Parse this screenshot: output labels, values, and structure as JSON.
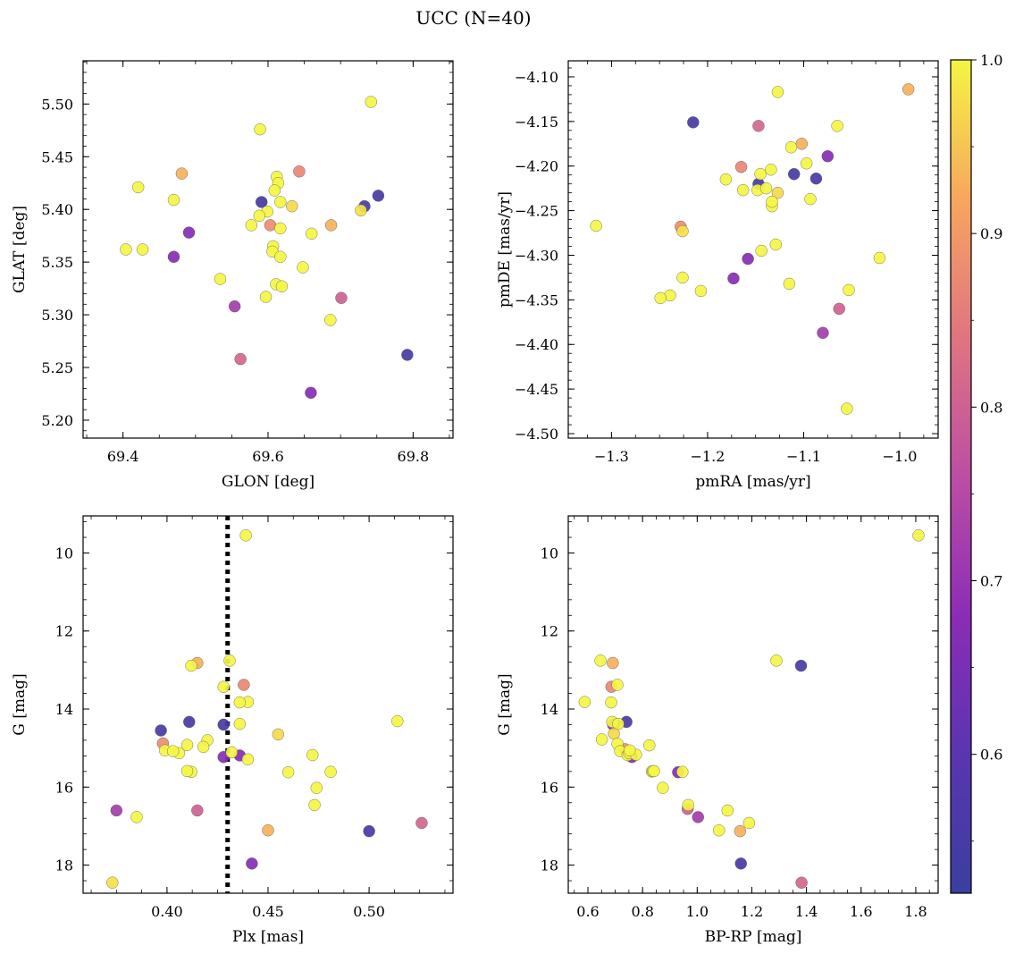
{
  "figure": {
    "title": "UCC (N=40)"
  },
  "colorbar": {
    "min": 0.52,
    "max": 1.0,
    "ticks": [
      0.6,
      0.7,
      0.8,
      0.9,
      1.0
    ],
    "tick_labels": [
      "0.6",
      "0.7",
      "0.8",
      "0.9",
      "1.0"
    ],
    "colormap": "plasma"
  },
  "chart_data": [
    {
      "type": "scatter",
      "xlabel": "GLON [deg]",
      "ylabel": "GLAT [deg]",
      "xlim": [
        69.345,
        69.855
      ],
      "ylim": [
        5.183,
        5.541
      ],
      "xticks": [
        69.4,
        69.6,
        69.8
      ],
      "xtick_labels": [
        "69.4",
        "69.6",
        "69.8"
      ],
      "yticks": [
        5.2,
        5.25,
        5.3,
        5.35,
        5.4,
        5.45,
        5.5
      ],
      "ytick_labels": [
        "5.20",
        "5.25",
        "5.30",
        "5.35",
        "5.40",
        "5.45",
        "5.50"
      ],
      "y_inverted": false,
      "x": [
        69.742,
        69.589,
        69.481,
        69.612,
        69.643,
        69.421,
        69.47,
        69.614,
        69.609,
        69.733,
        69.752,
        69.591,
        69.617,
        69.633,
        69.599,
        69.588,
        69.577,
        69.603,
        69.617,
        69.66,
        69.491,
        69.404,
        69.427,
        69.607,
        69.606,
        69.617,
        69.47,
        69.648,
        69.534,
        69.611,
        69.619,
        69.597,
        69.701,
        69.554,
        69.686,
        69.687,
        69.792,
        69.562,
        69.659,
        69.728
      ],
      "y": [
        5.502,
        5.476,
        5.434,
        5.431,
        5.436,
        5.421,
        5.409,
        5.425,
        5.418,
        5.403,
        5.413,
        5.407,
        5.407,
        5.403,
        5.398,
        5.394,
        5.385,
        5.385,
        5.382,
        5.377,
        5.378,
        5.362,
        5.362,
        5.365,
        5.36,
        5.355,
        5.355,
        5.345,
        5.334,
        5.329,
        5.327,
        5.317,
        5.316,
        5.308,
        5.295,
        5.385,
        5.262,
        5.258,
        5.226,
        5.399
      ]
    },
    {
      "type": "scatter",
      "xlabel": "pmRA [mas/yr]",
      "ylabel": "pmDE [mas/yr]",
      "xlim": [
        -1.345,
        -0.96
      ],
      "ylim": [
        -4.505,
        -4.082
      ],
      "xticks": [
        -1.3,
        -1.2,
        -1.1,
        -1.0
      ],
      "xtick_labels": [
        "−1.3",
        "−1.2",
        "−1.1",
        "−1.0"
      ],
      "yticks": [
        -4.1,
        -4.15,
        -4.2,
        -4.25,
        -4.3,
        -4.35,
        -4.4,
        -4.45,
        -4.5
      ],
      "ytick_labels": [
        "−4.10",
        "−4.15",
        "−4.20",
        "−4.25",
        "−4.30",
        "−4.35",
        "−4.40",
        "−4.45",
        "−4.50"
      ],
      "y_inverted": false,
      "x": [
        -1.127,
        -1.065,
        -1.102,
        -1.113,
        -1.165,
        -1.097,
        -1.145,
        -1.134,
        -1.181,
        -1.147,
        -1.11,
        -1.087,
        -1.148,
        -1.127,
        -1.139,
        -1.093,
        -1.133,
        -1.228,
        -1.316,
        -1.144,
        -1.158,
        -1.133,
        -1.129,
        -1.163,
        -1.021,
        -1.115,
        -1.173,
        -1.207,
        -1.226,
        -1.239,
        -1.249,
        -1.053,
        -1.063,
        -1.08,
        -1.055,
        -0.991,
        -1.215,
        -1.147,
        -1.075,
        -1.226
      ],
      "y": [
        -4.117,
        -4.155,
        -4.175,
        -4.179,
        -4.201,
        -4.197,
        -4.209,
        -4.204,
        -4.215,
        -4.22,
        -4.209,
        -4.214,
        -4.227,
        -4.23,
        -4.225,
        -4.237,
        -4.245,
        -4.268,
        -4.267,
        -4.295,
        -4.304,
        -4.24,
        -4.288,
        -4.227,
        -4.303,
        -4.332,
        -4.326,
        -4.34,
        -4.325,
        -4.345,
        -4.348,
        -4.339,
        -4.36,
        -4.387,
        -4.472,
        -4.114,
        -4.151,
        -4.155,
        -4.189,
        -4.273
      ]
    },
    {
      "type": "scatter",
      "xlabel": "Plx [mas]",
      "ylabel": "G [mag]",
      "xlim": [
        0.3585,
        0.5415
      ],
      "ylim": [
        9.05,
        18.72
      ],
      "xticks": [
        0.4,
        0.45,
        0.5
      ],
      "xtick_labels": [
        "0.40",
        "0.45",
        "0.50"
      ],
      "yticks": [
        10,
        12,
        14,
        16,
        18
      ],
      "ytick_labels": [
        "10",
        "12",
        "14",
        "16",
        "18"
      ],
      "y_inverted": true,
      "vline": {
        "x": 0.43,
        "style": "dotted",
        "color": "#000000"
      },
      "x": [
        0.439,
        0.431,
        0.415,
        0.412,
        0.438,
        0.428,
        0.44,
        0.436,
        0.42,
        0.397,
        0.411,
        0.428,
        0.436,
        0.455,
        0.41,
        0.406,
        0.418,
        0.398,
        0.399,
        0.403,
        0.436,
        0.472,
        0.432,
        0.412,
        0.41,
        0.46,
        0.428,
        0.44,
        0.474,
        0.481,
        0.514,
        0.473,
        0.415,
        0.375,
        0.385,
        0.45,
        0.5,
        0.526,
        0.442,
        0.373
      ],
      "y": [
        9.55,
        12.76,
        12.82,
        12.89,
        13.38,
        13.43,
        13.82,
        13.83,
        14.8,
        14.55,
        14.33,
        14.4,
        14.38,
        14.65,
        14.92,
        15.13,
        14.97,
        14.88,
        15.06,
        15.08,
        15.19,
        15.18,
        15.11,
        15.61,
        15.59,
        15.62,
        15.23,
        15.29,
        16.02,
        15.61,
        14.31,
        16.46,
        16.6,
        16.6,
        16.77,
        17.11,
        17.13,
        16.92,
        17.96,
        18.45
      ]
    },
    {
      "type": "scatter",
      "xlabel": "BP-RP [mag]",
      "ylabel": "G [mag]",
      "xlim": [
        0.528,
        1.882
      ],
      "ylim": [
        9.05,
        18.72
      ],
      "xticks": [
        0.6,
        0.8,
        1.0,
        1.2,
        1.4,
        1.6,
        1.8
      ],
      "xtick_labels": [
        "0.6",
        "0.8",
        "1.0",
        "1.2",
        "1.4",
        "1.6",
        "1.8"
      ],
      "yticks": [
        10,
        12,
        14,
        16,
        18
      ],
      "ytick_labels": [
        "10",
        "12",
        "14",
        "16",
        "18"
      ],
      "y_inverted": true,
      "x": [
        1.81,
        0.646,
        0.691,
        0.708,
        0.686,
        1.29,
        0.685,
        0.588,
        0.689,
        1.38,
        0.741,
        0.699,
        0.711,
        0.695,
        0.708,
        0.651,
        0.718,
        0.736,
        0.745,
        0.751,
        0.761,
        0.776,
        0.753,
        0.825,
        0.838,
        0.842,
        0.93,
        0.946,
        0.874,
        0.967,
        1.111,
        1.19,
        0.965,
        1.003,
        1.08,
        1.157,
        1.16,
        1.382,
        0.692,
        0.834
      ],
      "y": [
        9.55,
        12.76,
        12.82,
        13.38,
        13.43,
        12.76,
        13.83,
        13.82,
        14.33,
        12.89,
        14.33,
        14.38,
        14.38,
        14.63,
        14.89,
        14.78,
        15.08,
        15.03,
        15.18,
        15.13,
        15.23,
        15.17,
        15.06,
        14.93,
        15.59,
        15.59,
        15.62,
        15.61,
        16.02,
        16.46,
        16.6,
        16.92,
        16.56,
        16.77,
        17.11,
        17.13,
        17.96,
        18.45,
        14.4,
        15.6
      ]
    }
  ],
  "point_membership": [
    1.0,
    1.0,
    0.93,
    1.0,
    0.87,
    1.0,
    1.0,
    1.0,
    1.0,
    0.55,
    0.55,
    0.55,
    1.0,
    0.97,
    1.0,
    1.0,
    1.0,
    0.88,
    1.0,
    1.0,
    0.67,
    1.0,
    1.0,
    1.0,
    1.0,
    1.0,
    0.67,
    1.0,
    1.0,
    1.0,
    1.0,
    1.0,
    0.8,
    0.72,
    1.0,
    0.93,
    0.55,
    0.81,
    0.67,
    0.98
  ]
}
